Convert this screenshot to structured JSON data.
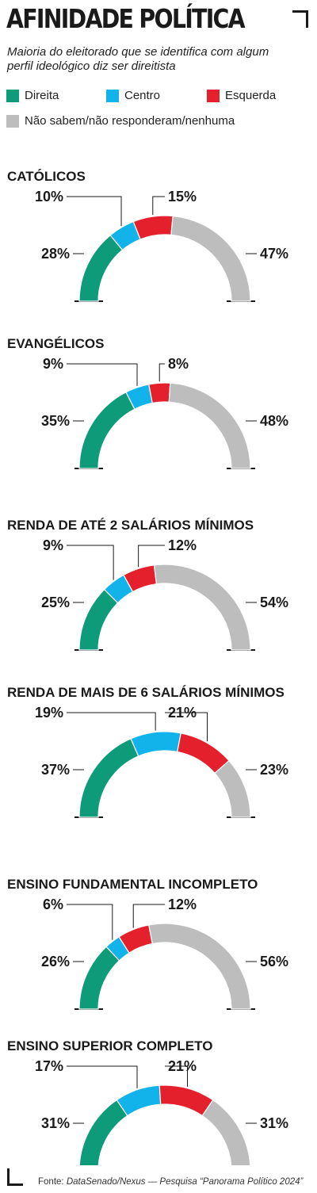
{
  "header": {
    "title": "AFINIDADE POLÍTICA",
    "subtitle": "Maioria do eleitorado que se identifica com algum perfil ideológico diz ser direitista"
  },
  "legend": {
    "items": [
      {
        "label": "Direita",
        "color": "#0e9b7a"
      },
      {
        "label": "Centro",
        "color": "#12b2ea"
      },
      {
        "label": "Esquerda",
        "color": "#e5202d"
      },
      {
        "label": "Não sabem/não responderam/nenhuma",
        "color": "#bdbdbd"
      }
    ]
  },
  "chart_data": [
    {
      "type": "pie",
      "title": "CATÓLICOS",
      "categories": [
        "Direita",
        "Centro",
        "Esquerda",
        "Não sabem/não responderam/nenhuma"
      ],
      "values": [
        28,
        10,
        15,
        47
      ],
      "labels": [
        "28%",
        "10%",
        "15%",
        "47%"
      ]
    },
    {
      "type": "pie",
      "title": "EVANGÉLICOS",
      "categories": [
        "Direita",
        "Centro",
        "Esquerda",
        "Não sabem/não responderam/nenhuma"
      ],
      "values": [
        35,
        9,
        8,
        48
      ],
      "labels": [
        "35%",
        "9%",
        "8%",
        "48%"
      ]
    },
    {
      "type": "pie",
      "title": "RENDA DE ATÉ 2 SALÁRIOS MÍNIMOS",
      "categories": [
        "Direita",
        "Centro",
        "Esquerda",
        "Não sabem/não responderam/nenhuma"
      ],
      "values": [
        25,
        9,
        12,
        54
      ],
      "labels": [
        "25%",
        "9%",
        "12%",
        "54%"
      ]
    },
    {
      "type": "pie",
      "title": "RENDA DE MAIS DE 6 SALÁRIOS MÍNIMOS",
      "categories": [
        "Direita",
        "Centro",
        "Esquerda",
        "Não sabem/não responderam/nenhuma"
      ],
      "values": [
        37,
        19,
        21,
        23
      ],
      "labels": [
        "37%",
        "19%",
        "21%",
        "23%"
      ]
    },
    {
      "type": "pie",
      "title": "ENSINO FUNDAMENTAL INCOMPLETO",
      "categories": [
        "Direita",
        "Centro",
        "Esquerda",
        "Não sabem/não responderam/nenhuma"
      ],
      "values": [
        26,
        6,
        12,
        56
      ],
      "labels": [
        "26%",
        "6%",
        "12%",
        "56%"
      ]
    },
    {
      "type": "pie",
      "title": "ENSINO SUPERIOR COMPLETO",
      "categories": [
        "Direita",
        "Centro",
        "Esquerda",
        "Não sabem/não responderam/nenhuma"
      ],
      "values": [
        31,
        17,
        21,
        31
      ],
      "labels": [
        "31%",
        "17%",
        "21%",
        "31%"
      ]
    }
  ],
  "footer": {
    "prefix": "Fonte: ",
    "source": "DataSenado/Nexus — Pesquisa “Panorama Político 2024”"
  }
}
